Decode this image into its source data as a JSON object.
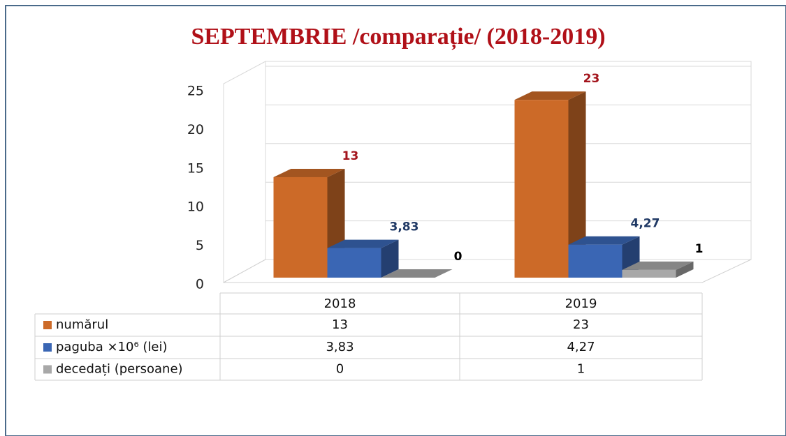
{
  "chart_data": {
    "type": "bar3d",
    "title": "SEPTEMBRIE /comparație/  (2018-2019)",
    "categories": [
      "2018",
      "2019"
    ],
    "series": [
      {
        "name": "numărul",
        "color": "#cc6a28",
        "label_color": "#a3141c",
        "values": [
          13,
          23
        ]
      },
      {
        "name": "paguba ×10⁶ (lei)",
        "color": "#3a66b4",
        "label_color": "#1f3864",
        "values": [
          3.83,
          4.27
        ],
        "value_labels": [
          "3,83",
          "4,27"
        ]
      },
      {
        "name": "decedați (persoane)",
        "color": "#a8a8a8",
        "label_color": "#000000",
        "values": [
          0,
          1
        ]
      }
    ],
    "ylim": [
      0,
      25
    ],
    "yticks": [
      0,
      5,
      10,
      15,
      20,
      25
    ],
    "grid": true,
    "data_table": true
  }
}
